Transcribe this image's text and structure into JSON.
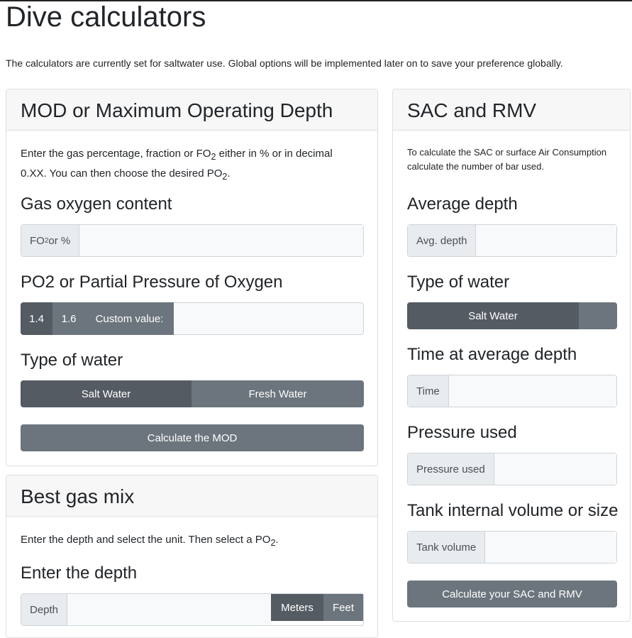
{
  "title": "Dive calculators",
  "intro": "The calculators are currently set for saltwater use. Global options will be implemented later on to save your preference globally.",
  "mod": {
    "title": "MOD or Maximum Operating Depth",
    "desc1": "Enter the gas percentage, fraction or FO",
    "desc2": " either in % or in decimal",
    "desc3": "0.XX. You can then choose the desired PO",
    "desc4": ".",
    "sub": "2",
    "gas_label": "Gas oxygen content",
    "gas_addon": "FO",
    "gas_addon2": " or %",
    "po2_label": "PO2 or Partial Pressure of Oxygen",
    "po2_options": [
      "1.4",
      "1.6"
    ],
    "custom": "Custom value:",
    "water_label": "Type of water",
    "salt": "Salt Water",
    "fresh": "Fresh Water",
    "calc": "Calculate the MOD"
  },
  "best": {
    "title": "Best gas mix",
    "desc1": "Enter the depth and select the unit. Then select a PO",
    "desc2": ".",
    "sub": "2",
    "depth_label": "Enter the depth",
    "depth_addon": "Depth",
    "meters": "Meters",
    "feet": "Feet"
  },
  "sac": {
    "title": "SAC and RMV",
    "desc1": "To calculate the SAC or surface Air Consumption",
    "desc2": "calculate the number of bar used.",
    "avg_label": "Average depth",
    "avg_addon": "Avg. depth",
    "water_label": "Type of water",
    "salt": "Salt Water",
    "time_label": "Time at average depth",
    "time_addon": "Time",
    "pressure_label": "Pressure used",
    "pressure_addon": "Pressure used",
    "tank_label": "Tank internal volume or size",
    "tank_addon": "Tank volume",
    "calc": "Calculate your SAC and RMV"
  }
}
